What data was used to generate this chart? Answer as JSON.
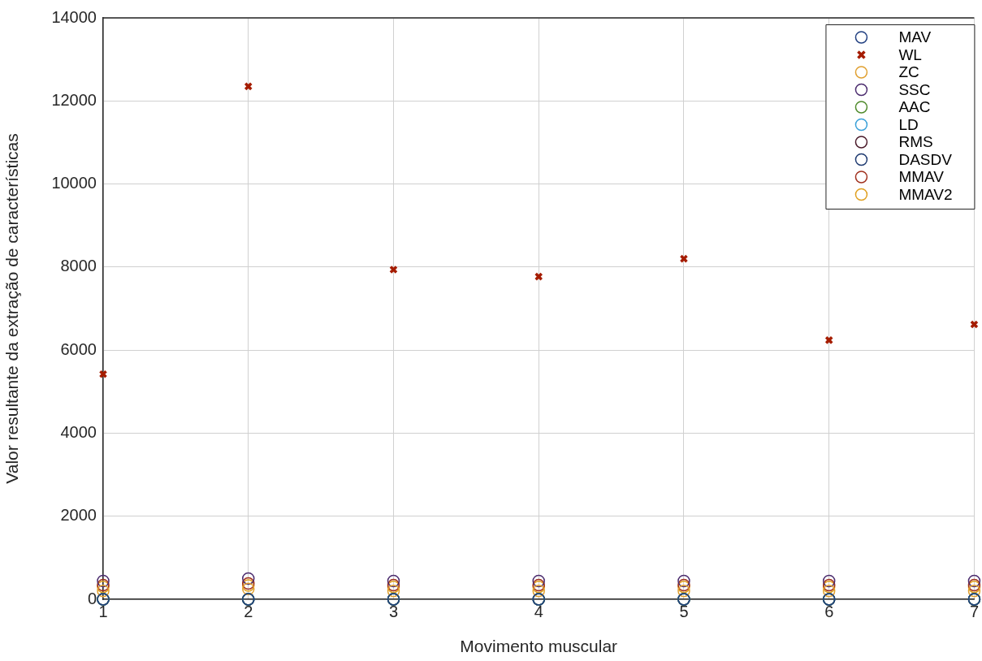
{
  "chart_data": {
    "type": "scatter",
    "xlabel": "Movimento muscular",
    "ylabel": "Valor resultante da extração de características",
    "x": [
      1,
      2,
      3,
      4,
      5,
      6,
      7
    ],
    "xlim": [
      1,
      7
    ],
    "xticks": [
      1,
      2,
      3,
      4,
      5,
      6,
      7
    ],
    "ylim": [
      0,
      14000
    ],
    "yticks": [
      0,
      2000,
      4000,
      6000,
      8000,
      10000,
      12000,
      14000
    ],
    "grid": true,
    "legend": "top right",
    "marker": "circle",
    "series": [
      {
        "name": "MAV",
        "color": "#203f80",
        "values": [
          0,
          0,
          0,
          0,
          0,
          0,
          0
        ]
      },
      {
        "name": "WL",
        "color": "#a51c00",
        "marker": "cross",
        "values": [
          5420,
          12350,
          7940,
          7770,
          8200,
          6240,
          6620
        ]
      },
      {
        "name": "ZC",
        "color": "#e0a030",
        "values": [
          200,
          250,
          200,
          200,
          200,
          200,
          200
        ]
      },
      {
        "name": "SSC",
        "color": "#4b2c6e",
        "values": [
          440,
          500,
          440,
          440,
          440,
          440,
          440
        ]
      },
      {
        "name": "AAC",
        "color": "#4f8a2b",
        "values": [
          0,
          0,
          0,
          0,
          0,
          0,
          0
        ]
      },
      {
        "name": "LD",
        "color": "#3aa0d8",
        "values": [
          0,
          0,
          0,
          0,
          0,
          0,
          0
        ]
      },
      {
        "name": "RMS",
        "color": "#4a1a2a",
        "values": [
          0,
          0,
          0,
          0,
          0,
          0,
          0
        ]
      },
      {
        "name": "DASDV",
        "color": "#1e3a70",
        "values": [
          0,
          0,
          0,
          0,
          0,
          0,
          0
        ]
      },
      {
        "name": "MMAV",
        "color": "#a0301e",
        "values": [
          340,
          380,
          340,
          340,
          340,
          340,
          340
        ]
      },
      {
        "name": "MMAV2",
        "color": "#e0a020",
        "values": [
          300,
          330,
          300,
          300,
          300,
          300,
          300
        ]
      }
    ]
  }
}
